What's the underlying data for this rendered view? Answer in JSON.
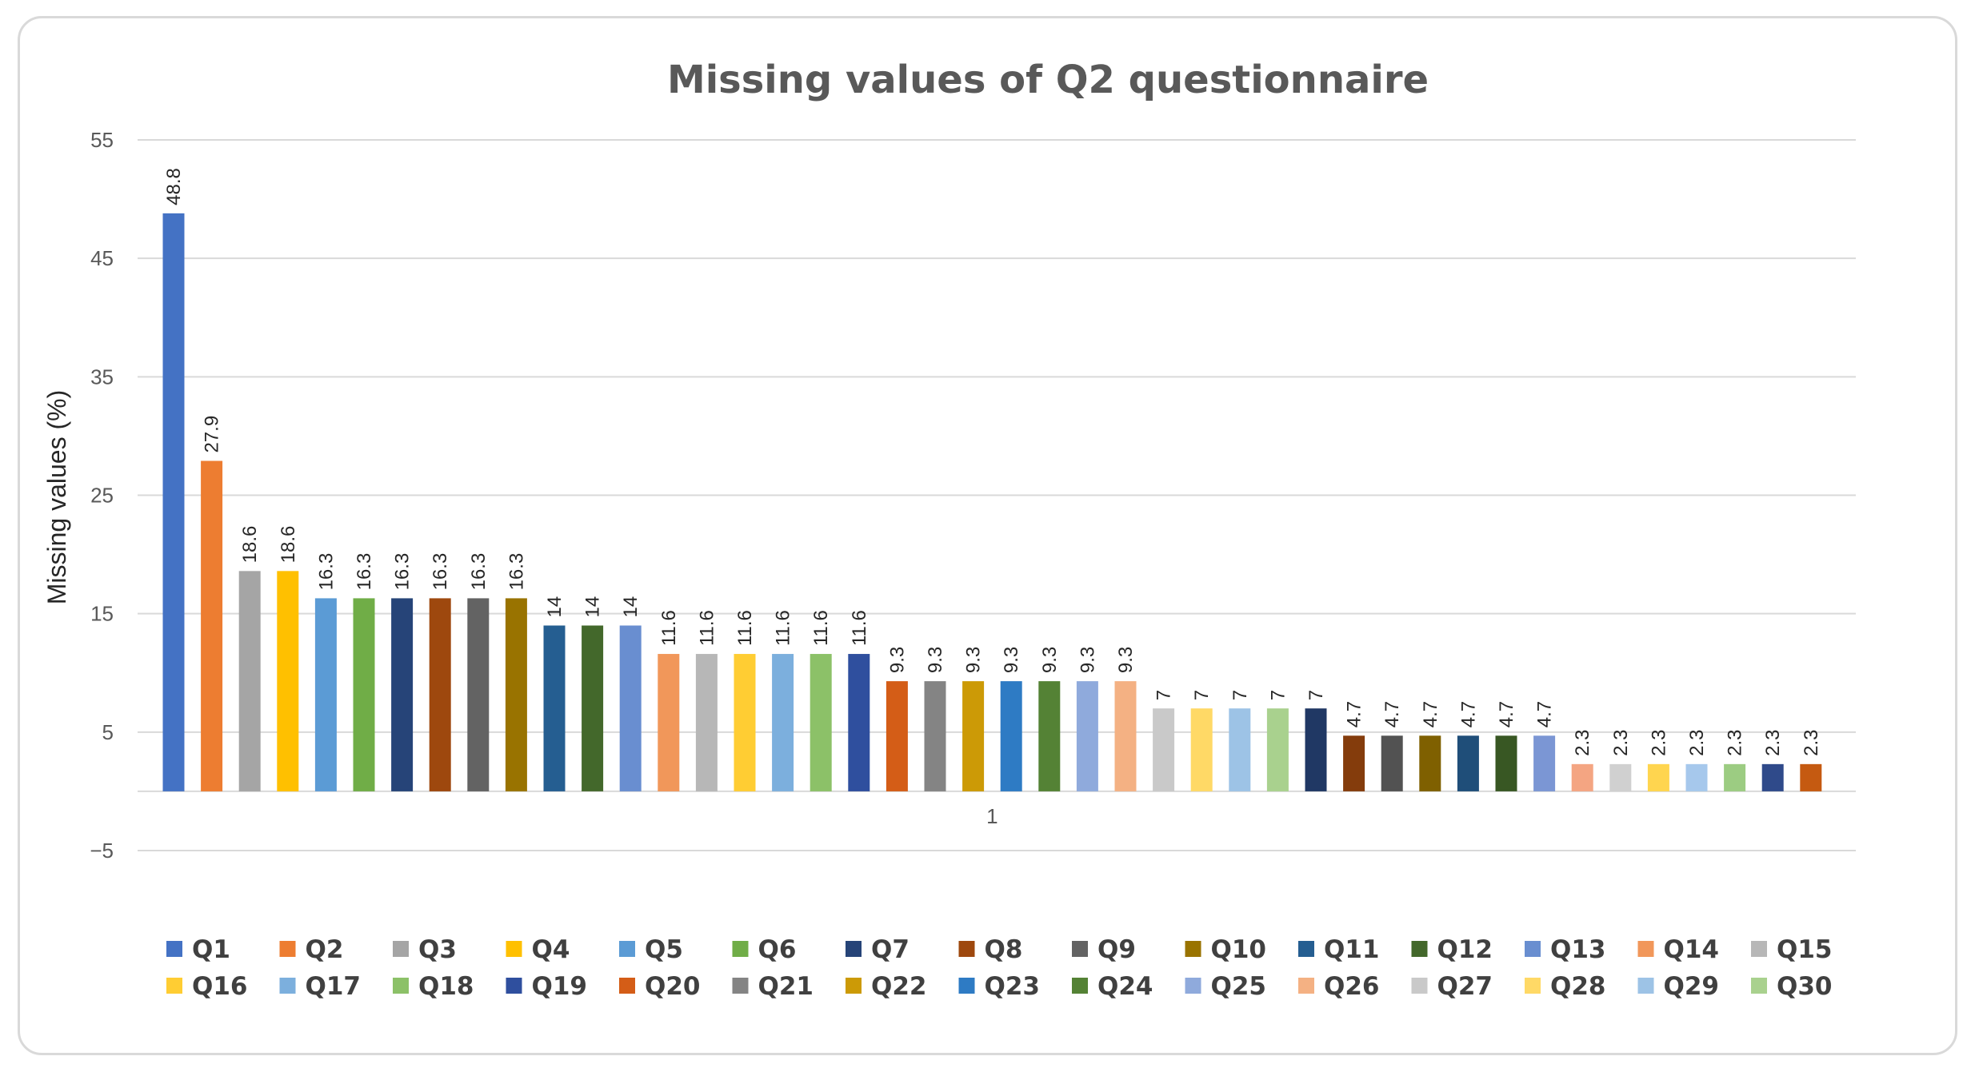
{
  "chart_data": {
    "type": "bar",
    "title": "Missing values of Q2 questionnaire",
    "ylabel": "Missing values (%)",
    "xlabel": "",
    "categories": [
      "1"
    ],
    "yticks": [
      55,
      45,
      35,
      25,
      15,
      5,
      -5
    ],
    "ytick_labels": [
      "55",
      "45",
      "35",
      "25",
      "15",
      "5",
      "−5"
    ],
    "ylim": [
      -5,
      55
    ],
    "grid": true,
    "legend_position": "bottom",
    "series": [
      {
        "name": "Q1",
        "value": 48.8,
        "label": "48.8",
        "color": "#4472C4"
      },
      {
        "name": "Q2",
        "value": 27.9,
        "label": "27.9",
        "color": "#ED7D31"
      },
      {
        "name": "Q3",
        "value": 18.6,
        "label": "18.6",
        "color": "#A5A5A5"
      },
      {
        "name": "Q4",
        "value": 18.6,
        "label": "18.6",
        "color": "#FFC000"
      },
      {
        "name": "Q5",
        "value": 16.3,
        "label": "16.3",
        "color": "#5B9BD5"
      },
      {
        "name": "Q6",
        "value": 16.3,
        "label": "16.3",
        "color": "#70AD47"
      },
      {
        "name": "Q7",
        "value": 16.3,
        "label": "16.3",
        "color": "#264478"
      },
      {
        "name": "Q8",
        "value": 16.3,
        "label": "16.3",
        "color": "#9E480E"
      },
      {
        "name": "Q9",
        "value": 16.3,
        "label": "16.3",
        "color": "#636363"
      },
      {
        "name": "Q10",
        "value": 16.3,
        "label": "16.3",
        "color": "#997300"
      },
      {
        "name": "Q11",
        "value": 14,
        "label": "14",
        "color": "#255E91"
      },
      {
        "name": "Q12",
        "value": 14,
        "label": "14",
        "color": "#43682B"
      },
      {
        "name": "Q13",
        "value": 14,
        "label": "14",
        "color": "#698ED0"
      },
      {
        "name": "Q14",
        "value": 11.6,
        "label": "11.6",
        "color": "#F1975A"
      },
      {
        "name": "Q15",
        "value": 11.6,
        "label": "11.6",
        "color": "#B7B7B7"
      },
      {
        "name": "Q16",
        "value": 11.6,
        "label": "11.6",
        "color": "#FFCD33"
      },
      {
        "name": "Q17",
        "value": 11.6,
        "label": "11.6",
        "color": "#7CAFDD"
      },
      {
        "name": "Q18",
        "value": 11.6,
        "label": "11.6",
        "color": "#8CC168"
      },
      {
        "name": "Q19",
        "value": 11.6,
        "label": "11.6",
        "color": "#2F4F9E"
      },
      {
        "name": "Q20",
        "value": 9.3,
        "label": "9.3",
        "color": "#D45D17"
      },
      {
        "name": "Q21",
        "value": 9.3,
        "label": "9.3",
        "color": "#848484"
      },
      {
        "name": "Q22",
        "value": 9.3,
        "label": "9.3",
        "color": "#CC9A06"
      },
      {
        "name": "Q23",
        "value": 9.3,
        "label": "9.3",
        "color": "#2E7BC4"
      },
      {
        "name": "Q24",
        "value": 9.3,
        "label": "9.3",
        "color": "#548235"
      },
      {
        "name": "Q25",
        "value": 9.3,
        "label": "9.3",
        "color": "#8FAADC"
      },
      {
        "name": "Q26",
        "value": 9.3,
        "label": "9.3",
        "color": "#F4B183"
      },
      {
        "name": "Q27",
        "value": 7,
        "label": "7",
        "color": "#C9C9C9"
      },
      {
        "name": "Q28",
        "value": 7,
        "label": "7",
        "color": "#FFD966"
      },
      {
        "name": "Q29",
        "value": 7,
        "label": "7",
        "color": "#9DC3E6"
      },
      {
        "name": "Q30",
        "value": 7,
        "label": "7",
        "color": "#A9D18E"
      },
      {
        "name": "",
        "value": 7,
        "label": "7",
        "color": "#203864"
      },
      {
        "name": "",
        "value": 4.7,
        "label": "4.7",
        "color": "#843C0C"
      },
      {
        "name": "",
        "value": 4.7,
        "label": "4.7",
        "color": "#525252"
      },
      {
        "name": "",
        "value": 4.7,
        "label": "4.7",
        "color": "#7F6000"
      },
      {
        "name": "",
        "value": 4.7,
        "label": "4.7",
        "color": "#1F4E79"
      },
      {
        "name": "",
        "value": 4.7,
        "label": "4.7",
        "color": "#385723"
      },
      {
        "name": "",
        "value": 4.7,
        "label": "4.7",
        "color": "#7B96D4"
      },
      {
        "name": "",
        "value": 2.3,
        "label": "2.3",
        "color": "#F4A582"
      },
      {
        "name": "",
        "value": 2.3,
        "label": "2.3",
        "color": "#D0D0D0"
      },
      {
        "name": "",
        "value": 2.3,
        "label": "2.3",
        "color": "#FFD54F"
      },
      {
        "name": "",
        "value": 2.3,
        "label": "2.3",
        "color": "#A6C8EC"
      },
      {
        "name": "",
        "value": 2.3,
        "label": "2.3",
        "color": "#9CCC82"
      },
      {
        "name": "",
        "value": 2.3,
        "label": "2.3",
        "color": "#2F4A8A"
      },
      {
        "name": "",
        "value": 2.3,
        "label": "2.3",
        "color": "#C55A11"
      }
    ]
  }
}
